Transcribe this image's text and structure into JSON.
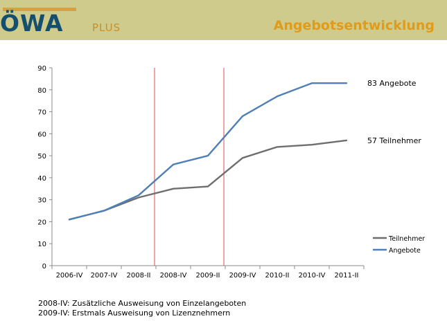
{
  "header": {
    "logo_main": "ÖWA",
    "logo_sub": "PLUS",
    "title": "Angebotsentwicklung"
  },
  "chart_data": {
    "type": "line",
    "categories": [
      "2006-IV",
      "2007-IV",
      "2008-II",
      "2008-IV",
      "2009-II",
      "2009-IV",
      "2010-II",
      "2010-IV",
      "2011-II"
    ],
    "series": [
      {
        "name": "Teilnehmer",
        "values": [
          21,
          25,
          31,
          35,
          36,
          49,
          54,
          55,
          57
        ],
        "color": "#6e6e6e"
      },
      {
        "name": "Angebote",
        "values": [
          21,
          25,
          32,
          46,
          50,
          68,
          77,
          83,
          83
        ],
        "color": "#4f7fb4"
      }
    ],
    "ylim": [
      0,
      90
    ],
    "yticks": [
      0,
      10,
      20,
      30,
      40,
      50,
      60,
      70,
      80,
      90
    ],
    "markers": [
      "2008-IV",
      "2009-IV"
    ],
    "marker_color": "#e04a4a",
    "end_labels": [
      "57 Teilnehmer",
      "83 Angebote"
    ],
    "legend": [
      "Teilnehmer",
      "Angebote"
    ],
    "legend_position": "right"
  },
  "notes": [
    "2008-IV: Zusätzliche Ausweisung von Einzelangeboten",
    "2009-IV: Erstmals Ausweisung von Lizenznehmern"
  ]
}
